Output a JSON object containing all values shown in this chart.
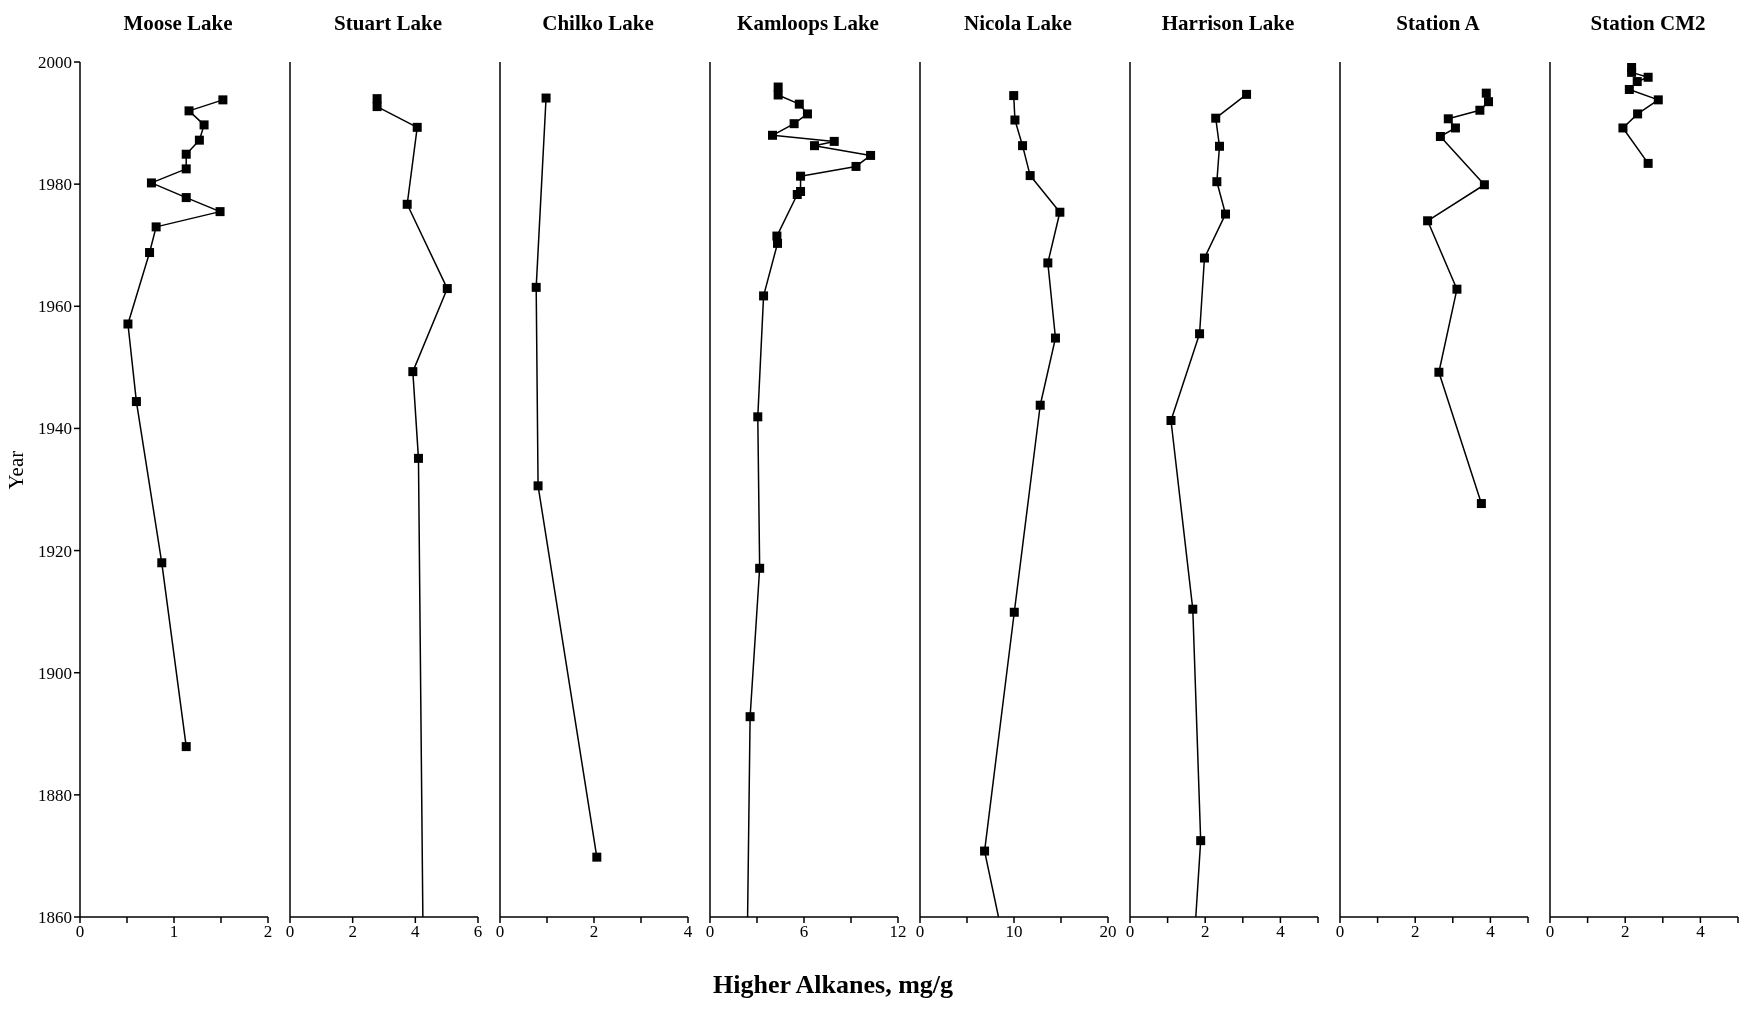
{
  "chart_data": [
    {
      "type": "line",
      "title": "Moose Lake",
      "ylabel": "Year",
      "marker": "square",
      "xlim": [
        0,
        2
      ],
      "xticks": [
        0,
        {
          "value": 0.5,
          "label": null
        },
        1,
        {
          "value": 1.5,
          "label": null
        },
        2
      ],
      "ylim": [
        1860,
        2000
      ],
      "yticks": [
        1860,
        1880,
        1900,
        1920,
        1940,
        1960,
        1980,
        2000
      ],
      "series": [
        {
          "color": "#000000",
          "x": [
            1.52,
            1.16,
            1.32,
            1.27,
            1.13,
            1.13,
            0.76,
            1.13,
            1.49,
            0.81,
            0.74,
            0.51,
            0.6,
            0.87,
            1.13
          ],
          "values": [
            1993.8,
            1992.0,
            1989.7,
            1987.2,
            1984.9,
            1982.5,
            1980.2,
            1977.8,
            1975.5,
            1973.0,
            1968.8,
            1957.1,
            1944.4,
            1918.0,
            1887.9
          ]
        }
      ]
    },
    {
      "type": "line",
      "title": "Stuart Lake",
      "marker": "square",
      "tick_labels": "x",
      "xlim": [
        0,
        6
      ],
      "xticks": [
        0,
        2,
        4,
        6
      ],
      "ylim": [
        1860,
        2000
      ],
      "series": [
        {
          "color": "#000000",
          "x": [
            2.78,
            2.78,
            4.06,
            3.74,
            5.02,
            3.92,
            4.1,
            4.24
          ],
          "values": [
            1994.0,
            1992.7,
            1989.3,
            1976.7,
            1962.9,
            1949.3,
            1935.1,
            1860
          ]
        }
      ]
    },
    {
      "type": "line",
      "title": "Chilko Lake",
      "marker": "square",
      "tick_labels": "x",
      "xlim": [
        0,
        4
      ],
      "xticks": [
        0,
        {
          "value": 1,
          "label": null
        },
        2,
        {
          "value": 3,
          "label": null
        },
        4
      ],
      "ylim": [
        1860,
        2000
      ],
      "series": [
        {
          "color": "#000000",
          "x": [
            0.98,
            0.77,
            0.81,
            2.06
          ],
          "values": [
            1994.1,
            1963.1,
            1930.6,
            1869.8
          ]
        }
      ]
    },
    {
      "type": "line",
      "title": "Kamloops Lake",
      "xlabel": "Higher Alkanes, mg/g",
      "marker": "square",
      "tick_labels": "x",
      "xlim": [
        0,
        12
      ],
      "xticks": [
        0,
        {
          "value": 3,
          "label": null
        },
        6,
        {
          "value": 9,
          "label": null
        },
        12
      ],
      "ylim": [
        1860,
        2000
      ],
      "series": [
        {
          "color": "#000000",
          "x": [
            4.35,
            4.35,
            5.7,
            6.22,
            5.37,
            3.99,
            7.93,
            6.67,
            10.25,
            9.32,
            5.78,
            5.78,
            5.57,
            4.27,
            4.31,
            3.42,
            3.05,
            3.17,
            2.56,
            2.4
          ],
          "values": [
            1995.9,
            1994.6,
            1993.1,
            1991.5,
            1989.9,
            1988.0,
            1987.0,
            1986.3,
            1984.7,
            1982.9,
            1981.3,
            1978.8,
            1978.3,
            1971.5,
            1970.3,
            1961.7,
            1941.9,
            1917.1,
            1892.8,
            1860
          ]
        }
      ]
    },
    {
      "type": "line",
      "title": "Nicola Lake",
      "marker": "square",
      "tick_labels": "x",
      "xlim": [
        0,
        20
      ],
      "xticks": [
        0,
        {
          "value": 5,
          "label": null
        },
        10,
        {
          "value": 15,
          "label": null
        },
        20
      ],
      "ylim": [
        1860,
        2000
      ],
      "series": [
        {
          "color": "#000000",
          "x": [
            9.97,
            10.1,
            10.91,
            11.72,
            14.88,
            13.6,
            14.41,
            12.79,
            10.03,
            6.87,
            8.35
          ],
          "values": [
            1994.5,
            1990.5,
            1986.3,
            1981.4,
            1975.4,
            1967.1,
            1954.8,
            1943.8,
            1909.9,
            1870.8,
            1860
          ]
        }
      ]
    },
    {
      "type": "line",
      "title": "Harrison Lake",
      "marker": "square",
      "tick_labels": "x",
      "xlim": [
        0,
        5
      ],
      "xticks": [
        0,
        {
          "value": 1,
          "label": null
        },
        2,
        {
          "value": 3,
          "label": null
        },
        4,
        {
          "value": 5,
          "label": null
        }
      ],
      "ylim": [
        1860,
        2000
      ],
      "series": [
        {
          "color": "#000000",
          "x": [
            3.1,
            2.28,
            2.38,
            2.31,
            2.54,
            1.98,
            1.85,
            1.09,
            1.67,
            1.88,
            1.75
          ],
          "values": [
            1994.7,
            1990.8,
            1986.2,
            1980.4,
            1975.1,
            1967.9,
            1955.5,
            1941.3,
            1910.4,
            1872.5,
            1860
          ]
        }
      ]
    },
    {
      "type": "line",
      "title": "Station A",
      "marker": "square",
      "tick_labels": "x",
      "xlim": [
        0,
        5
      ],
      "xticks": [
        0,
        {
          "value": 1,
          "label": null
        },
        2,
        {
          "value": 3,
          "label": null
        },
        4,
        {
          "value": 5,
          "label": null
        }
      ],
      "ylim": [
        1860,
        2000
      ],
      "series": [
        {
          "color": "#000000",
          "x": [
            3.89,
            3.95,
            3.72,
            2.88,
            3.07,
            2.67,
            3.84,
            2.33,
            3.11,
            2.63,
            3.76
          ],
          "values": [
            1994.9,
            1993.5,
            1992.1,
            1990.7,
            1989.2,
            1987.8,
            1979.9,
            1974.0,
            1962.8,
            1949.2,
            1927.7
          ]
        }
      ]
    },
    {
      "type": "line",
      "title": "Station CM2",
      "marker": "square",
      "tick_labels": "x",
      "xlim": [
        0,
        5
      ],
      "xticks": [
        0,
        {
          "value": 1,
          "label": null
        },
        2,
        {
          "value": 3,
          "label": null
        },
        4,
        {
          "value": 5,
          "label": null
        }
      ],
      "ylim": [
        1860,
        2000
      ],
      "series": [
        {
          "color": "#000000",
          "x": [
            2.17,
            2.17,
            2.61,
            2.32,
            2.11,
            2.88,
            2.33,
            1.94,
            2.61
          ],
          "values": [
            1999.1,
            1998.3,
            1997.5,
            1996.8,
            1995.5,
            1993.8,
            1991.5,
            1989.2,
            1983.4
          ]
        }
      ]
    }
  ]
}
